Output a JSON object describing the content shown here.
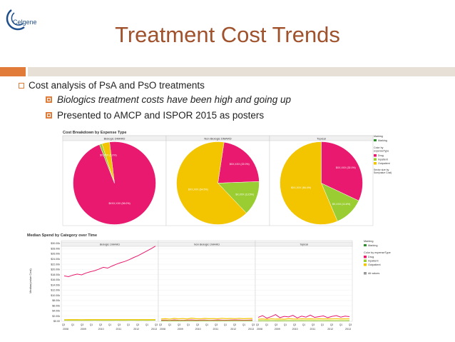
{
  "slide": {
    "title": "Treatment Cost Trends",
    "logo_text": "Celgene"
  },
  "bullets": {
    "level1": "Cost analysis of PsA and PsO treatments",
    "level2": [
      "Biologics treatment costs have been high and going up",
      "Presented to AMCP and ISPOR 2015 as posters"
    ]
  },
  "colors": {
    "drug": "#e8196e",
    "inpatient": "#9acd32",
    "outpatient": "#f2c500",
    "marking": "#2e8b2e",
    "title": "#a0522d",
    "accent": "#e07b39"
  },
  "chart_data": [
    {
      "type": "pie",
      "title": "Cost Breakdown by Expense Type",
      "panels": [
        {
          "name": "Biologic DMARD",
          "slices": [
            {
              "label": "Drug",
              "value": 96.0,
              "text": "$XXX,XXX (96.0%)"
            },
            {
              "label": "Inpatient",
              "value": 1.0,
              "text": ""
            },
            {
              "label": "Outpatient",
              "value": 3.0,
              "text": "$X,XXX (3.0%)"
            }
          ]
        },
        {
          "name": "Non Biologic DMARD",
          "slices": [
            {
              "label": "Drug",
              "value": 22.0,
              "text": "$XX,XXX (22.0%)"
            },
            {
              "label": "Inpatient",
              "value": 13.5,
              "text": "$X,XXX (13.5%)"
            },
            {
              "label": "Outpatient",
              "value": 64.5,
              "text": "$XX,XXX (64.5%)"
            }
          ]
        },
        {
          "name": "Topical",
          "slices": [
            {
              "label": "Drug",
              "value": 32.0,
              "text": "$XX,XXX (32.0%)"
            },
            {
              "label": "Inpatient",
              "value": 11.6,
              "text": "$X,XXX (11.6%)"
            },
            {
              "label": "Outpatient",
              "value": 56.4,
              "text": "$XX,XXX (56.4%)"
            }
          ]
        }
      ],
      "legend": {
        "marking_label": "Marking",
        "marking_item": "Marking",
        "color_label": "Color by expenseType",
        "items": [
          "Drug",
          "Inpatient",
          "Outpatient"
        ],
        "size_note": "Sector size by Sum(value Cost)"
      }
    },
    {
      "type": "line",
      "title": "Median Spend by Category over Time",
      "ylabel": "Median(value Cost)",
      "ylim": [
        0,
        30000
      ],
      "y_ticks": [
        "$0.00",
        "$2.00k",
        "$4.00k",
        "$6.00k",
        "$8.00k",
        "$10.00k",
        "$12.00k",
        "$14.00k",
        "$16.00k",
        "$18.00k",
        "$20.00k",
        "$22.00k",
        "$24.00k",
        "$26.00k",
        "$28.00k",
        "$30.00k"
      ],
      "x_ticks": [
        "2008",
        "2009",
        "2010",
        "2011",
        "2012",
        "2013"
      ],
      "x_sub_ticks": [
        "Q3",
        "Q1",
        "Q3",
        "Q1",
        "Q3",
        "Q1",
        "Q3",
        "Q1",
        "Q3",
        "Q1",
        "Q3"
      ],
      "panels": [
        {
          "name": "Biologic DMARD",
          "series": [
            {
              "name": "Drug",
              "values": [
                17500,
                17200,
                17800,
                18200,
                17900,
                18600,
                19100,
                19500,
                20100,
                20800,
                20500,
                21300,
                22000,
                22600,
                23100,
                23800,
                24600,
                25300,
                26200,
                27100,
                28000,
                29000
              ]
            },
            {
              "name": "Inpatient",
              "values": [
                400,
                420,
                410,
                430,
                400,
                410,
                420,
                430,
                410,
                420,
                440,
                420,
                430,
                410,
                420,
                430,
                440,
                420,
                430,
                420,
                430,
                440
              ]
            },
            {
              "name": "Outpatient",
              "values": [
                600,
                620,
                610,
                630,
                600,
                610,
                620,
                630,
                610,
                620,
                640,
                620,
                630,
                610,
                620,
                630,
                640,
                620,
                630,
                620,
                630,
                640
              ]
            }
          ]
        },
        {
          "name": "Non Biologic DMARD",
          "series": [
            {
              "name": "Drug",
              "values": [
                400,
                450,
                350,
                500,
                420,
                380,
                460,
                520,
                400,
                440,
                480,
                390,
                430,
                500,
                450,
                410,
                470,
                530,
                480,
                420,
                460,
                500
              ]
            },
            {
              "name": "Inpatient",
              "values": [
                200,
                220,
                210,
                230,
                200,
                210,
                220,
                230,
                210,
                220,
                240,
                220,
                230,
                210,
                220,
                230,
                240,
                220,
                230,
                220,
                230,
                240
              ]
            },
            {
              "name": "Outpatient",
              "values": [
                900,
                1000,
                850,
                1100,
                950,
                1050,
                900,
                1200,
                1000,
                950,
                1100,
                1000,
                1050,
                980,
                1150,
                1000,
                1080,
                1020,
                1120,
                1000,
                1060,
                1100
              ]
            }
          ]
        },
        {
          "name": "Topical",
          "series": [
            {
              "name": "Drug",
              "values": [
                1500,
                2200,
                1200,
                1800,
                2600,
                1400,
                1900,
                1700,
                2300,
                1300,
                2000,
                1600,
                2400,
                1500,
                1800,
                2100,
                1400,
                1900,
                2200,
                1600,
                2000,
                1800
              ]
            },
            {
              "name": "Inpatient",
              "values": [
                200,
                220,
                210,
                230,
                200,
                210,
                220,
                230,
                210,
                220,
                240,
                220,
                230,
                210,
                220,
                230,
                240,
                220,
                230,
                220,
                230,
                240
              ]
            },
            {
              "name": "Outpatient",
              "values": [
                800,
                900,
                750,
                950,
                850,
                900,
                800,
                1000,
                900,
                850,
                950,
                900,
                920,
                880,
                960,
                900,
                940,
                910,
                980,
                900,
                930,
                950
              ]
            }
          ]
        }
      ],
      "legend": {
        "marking_label": "Marking",
        "marking_item": "Marking",
        "color_label": "Color by expenseType",
        "items": [
          "Drug",
          "Inpatient",
          "Outpatient"
        ],
        "all_values": "All values"
      }
    }
  ]
}
